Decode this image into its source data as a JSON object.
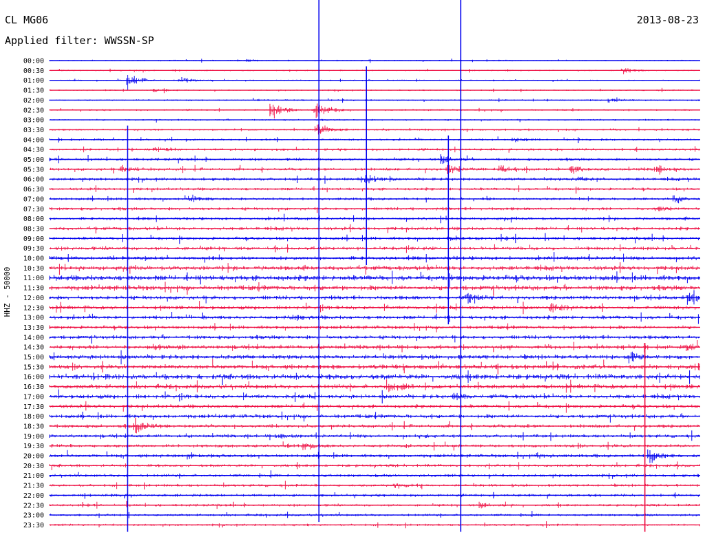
{
  "header": {
    "station": "CL MG06",
    "date": "2013-08-23",
    "filter": "Applied filter: WWSSN-SP"
  },
  "chart_data": {
    "type": "line",
    "ylabel": "HHZ - 50000",
    "colors": [
      "#0000ee",
      "#ee1144"
    ],
    "trace_labels": [
      "00:00",
      "00:30",
      "01:00",
      "01:30",
      "02:00",
      "02:30",
      "03:00",
      "03:30",
      "04:00",
      "04:30",
      "05:00",
      "05:30",
      "06:00",
      "06:30",
      "07:00",
      "07:30",
      "08:00",
      "08:30",
      "09:00",
      "09:30",
      "10:00",
      "10:30",
      "11:00",
      "11:30",
      "12:00",
      "12:30",
      "13:00",
      "13:30",
      "14:00",
      "14:30",
      "15:00",
      "15:30",
      "16:00",
      "16:30",
      "17:00",
      "17:30",
      "18:00",
      "18:30",
      "19:00",
      "19:30",
      "20:00",
      "20:30",
      "21:00",
      "21:30",
      "22:00",
      "22:30",
      "23:00",
      "23:30"
    ],
    "noise_level": [
      0.1,
      0.1,
      0.1,
      0.1,
      0.12,
      0.12,
      0.12,
      0.14,
      0.16,
      0.18,
      0.2,
      0.22,
      0.22,
      0.2,
      0.2,
      0.22,
      0.22,
      0.24,
      0.24,
      0.26,
      0.28,
      0.32,
      0.4,
      0.36,
      0.3,
      0.28,
      0.28,
      0.26,
      0.28,
      0.3,
      0.32,
      0.34,
      0.4,
      0.34,
      0.3,
      0.28,
      0.28,
      0.26,
      0.24,
      0.24,
      0.24,
      0.22,
      0.22,
      0.2,
      0.2,
      0.18,
      0.18,
      0.16
    ],
    "events": [
      {
        "trace": 0,
        "pos": 0.3,
        "amp": 0.5
      },
      {
        "trace": 1,
        "pos": 0.88,
        "amp": 1.0
      },
      {
        "trace": 2,
        "pos": 0.12,
        "amp": 2.0
      },
      {
        "trace": 2,
        "pos": 0.2,
        "amp": 0.9
      },
      {
        "trace": 3,
        "pos": 0.16,
        "amp": 0.5
      },
      {
        "trace": 4,
        "pos": 0.86,
        "amp": 0.6
      },
      {
        "trace": 5,
        "pos": 0.34,
        "amp": 2.5
      },
      {
        "trace": 5,
        "pos": 0.41,
        "amp": 2.5
      },
      {
        "trace": 7,
        "pos": 0.41,
        "amp": 2.0
      },
      {
        "trace": 8,
        "pos": 0.71,
        "amp": 0.8
      },
      {
        "trace": 9,
        "pos": 0.16,
        "amp": 0.5
      },
      {
        "trace": 10,
        "pos": 0.6,
        "amp": 1.0
      },
      {
        "trace": 11,
        "pos": 0.11,
        "amp": 0.7
      },
      {
        "trace": 11,
        "pos": 0.61,
        "amp": 1.5
      },
      {
        "trace": 11,
        "pos": 0.69,
        "amp": 1.2
      },
      {
        "trace": 11,
        "pos": 0.8,
        "amp": 1.0
      },
      {
        "trace": 11,
        "pos": 0.93,
        "amp": 1.5
      },
      {
        "trace": 12,
        "pos": 0.48,
        "amp": 1.8
      },
      {
        "trace": 12,
        "pos": 0.81,
        "amp": 0.6
      },
      {
        "trace": 14,
        "pos": 0.21,
        "amp": 1.2
      },
      {
        "trace": 14,
        "pos": 0.96,
        "amp": 0.9
      },
      {
        "trace": 15,
        "pos": 0.93,
        "amp": 0.8
      },
      {
        "trace": 18,
        "pos": 0.61,
        "amp": 0.6
      },
      {
        "trace": 24,
        "pos": 0.64,
        "amp": 1.4
      },
      {
        "trace": 24,
        "pos": 0.98,
        "amp": 1.2
      },
      {
        "trace": 25,
        "pos": 0.77,
        "amp": 1.0
      },
      {
        "trace": 26,
        "pos": 0.37,
        "amp": 0.8
      },
      {
        "trace": 29,
        "pos": 0.16,
        "amp": 0.7
      },
      {
        "trace": 29,
        "pos": 0.98,
        "amp": 0.6
      },
      {
        "trace": 30,
        "pos": 0.89,
        "amp": 1.5
      },
      {
        "trace": 33,
        "pos": 0.52,
        "amp": 1.8
      },
      {
        "trace": 34,
        "pos": 0.62,
        "amp": 0.9
      },
      {
        "trace": 37,
        "pos": 0.13,
        "amp": 1.8
      },
      {
        "trace": 38,
        "pos": 0.35,
        "amp": 0.5
      },
      {
        "trace": 38,
        "pos": 0.57,
        "amp": 0.5
      },
      {
        "trace": 39,
        "pos": 0.39,
        "amp": 0.9
      },
      {
        "trace": 40,
        "pos": 0.21,
        "amp": 0.7
      },
      {
        "trace": 40,
        "pos": 0.75,
        "amp": 0.6
      },
      {
        "trace": 40,
        "pos": 0.92,
        "amp": 2.0
      },
      {
        "trace": 43,
        "pos": 0.53,
        "amp": 0.8
      },
      {
        "trace": 45,
        "pos": 0.66,
        "amp": 0.6
      }
    ],
    "spikes": [
      {
        "trace": 0,
        "pos": 0.414,
        "top": 0,
        "bottom": 46
      },
      {
        "trace": 0,
        "pos": 0.632,
        "top": 0,
        "bottom": 47
      },
      {
        "trace": 0,
        "pos": 0.487,
        "top": 1,
        "bottom": 20
      },
      {
        "trace": 6,
        "pos": 0.12,
        "top": 7,
        "bottom": 47
      },
      {
        "trace": 8,
        "pos": 0.613,
        "top": 8,
        "bottom": 26
      },
      {
        "trace": 29,
        "pos": 0.915,
        "top": 29,
        "bottom": 47
      }
    ]
  }
}
